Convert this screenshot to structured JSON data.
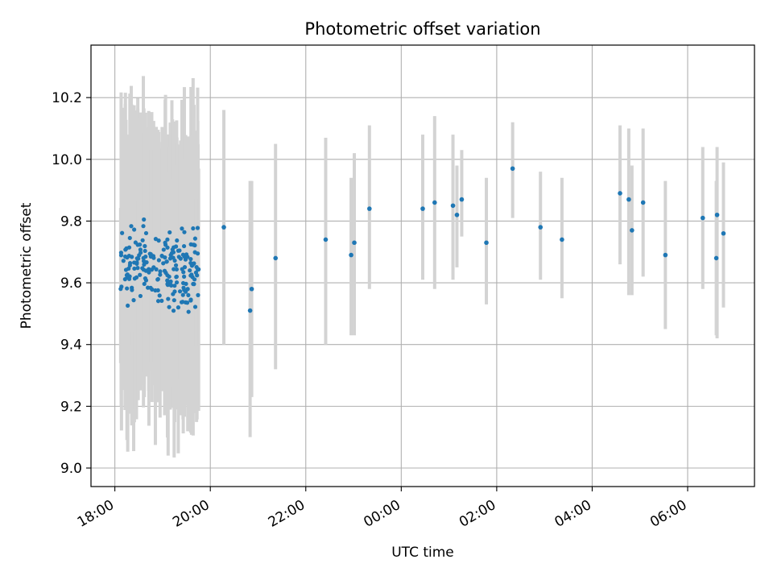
{
  "chart_data": {
    "type": "scatter",
    "title": "Photometric offset variation",
    "xlabel": "UTC time",
    "ylabel": "Photometric offset",
    "x_unit": "UTC time (hours after 18:00 on observing night, continuing past midnight)",
    "xlim": [
      -0.5,
      13.4
    ],
    "ylim": [
      8.94,
      10.37
    ],
    "x_tick_values": [
      0,
      2,
      4,
      6,
      8,
      10,
      12
    ],
    "x_tick_labels": [
      "18:00",
      "20:00",
      "22:00",
      "00:00",
      "02:00",
      "04:00",
      "06:00"
    ],
    "y_tick_values": [
      9.0,
      9.2,
      9.4,
      9.6,
      9.8,
      10.0,
      10.2
    ],
    "y_tick_labels": [
      "9.0",
      "9.2",
      "9.4",
      "9.6",
      "9.8",
      "10.0",
      "10.2"
    ],
    "grid": true,
    "errorbar_color": "#d3d3d3",
    "marker_color": "#1f77b4",
    "dense_cluster": {
      "x_range": [
        "18:07",
        "19:47"
      ],
      "y_range": [
        9.45,
        9.85
      ],
      "error_range": [
        9.0,
        10.3
      ],
      "note": "dense cluster of about 200 measurements, individual values not resolvable"
    },
    "series": [
      {
        "x": [
          "20:17",
          "20:50",
          "20:52",
          "21:22",
          "22:25",
          "22:57",
          "23:01",
          "23:20",
          "00:27",
          "00:42",
          "01:05",
          "01:10",
          "01:16",
          "01:47",
          "02:20",
          "02:55",
          "03:22",
          "04:35",
          "04:46",
          "04:50",
          "05:04",
          "05:32",
          "06:19",
          "06:36",
          "06:37",
          "06:45"
        ],
        "y": [
          9.78,
          9.51,
          9.58,
          9.68,
          9.74,
          9.69,
          9.73,
          9.84,
          9.84,
          9.86,
          9.85,
          9.82,
          9.87,
          9.73,
          9.97,
          9.78,
          9.74,
          9.89,
          9.87,
          9.77,
          9.86,
          9.69,
          9.81,
          9.68,
          9.82,
          9.76
        ],
        "y_low": [
          9.4,
          9.1,
          9.23,
          9.32,
          9.4,
          9.43,
          9.43,
          9.58,
          9.61,
          9.58,
          9.61,
          9.65,
          9.75,
          9.53,
          9.81,
          9.61,
          9.55,
          9.66,
          9.56,
          9.56,
          9.62,
          9.45,
          9.58,
          9.43,
          9.42,
          9.52
        ],
        "y_high": [
          10.16,
          9.93,
          9.93,
          10.05,
          10.07,
          9.94,
          10.02,
          10.11,
          10.08,
          10.14,
          10.08,
          9.98,
          10.03,
          9.94,
          10.12,
          9.96,
          9.94,
          10.11,
          10.1,
          9.98,
          10.1,
          9.93,
          10.04,
          9.93,
          10.04,
          9.99
        ]
      }
    ]
  }
}
